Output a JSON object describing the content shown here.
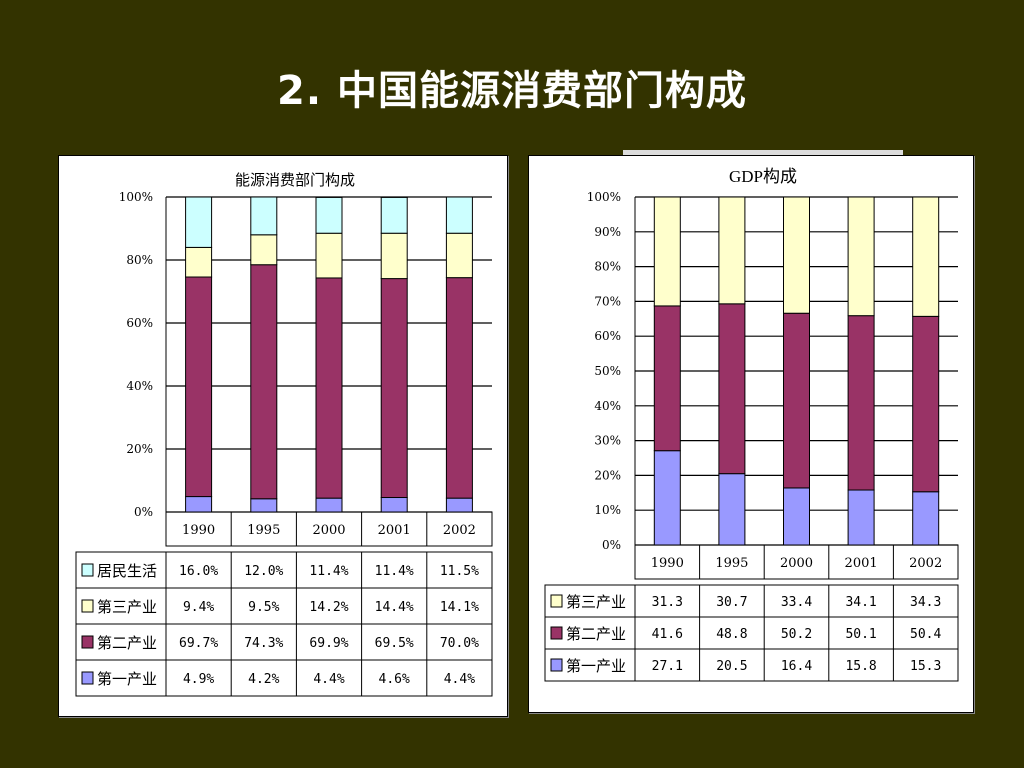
{
  "slide_title": "2. 中国能源消费部门构成",
  "chart_data": [
    {
      "type": "bar",
      "stacked": true,
      "title": "能源消费部门构成",
      "categories": [
        "1990",
        "1995",
        "2000",
        "2001",
        "2002"
      ],
      "y_ticks": [
        "0%",
        "20%",
        "40%",
        "60%",
        "80%",
        "100%"
      ],
      "ylim": [
        0,
        100
      ],
      "series": [
        {
          "name": "第一产业",
          "color": "#9999ff",
          "values": [
            4.9,
            4.2,
            4.4,
            4.6,
            4.4
          ],
          "labels": [
            "4.9%",
            "4.2%",
            "4.4%",
            "4.6%",
            "4.4%"
          ]
        },
        {
          "name": "第二产业",
          "color": "#993366",
          "values": [
            69.7,
            74.3,
            69.9,
            69.5,
            70.0
          ],
          "labels": [
            "69.7%",
            "74.3%",
            "69.9%",
            "69.5%",
            "70.0%"
          ]
        },
        {
          "name": "第三产业",
          "color": "#ffffcc",
          "values": [
            9.4,
            9.5,
            14.2,
            14.4,
            14.1
          ],
          "labels": [
            "9.4%",
            "9.5%",
            "14.2%",
            "14.4%",
            "14.1%"
          ]
        },
        {
          "name": "居民生活",
          "color": "#ccffff",
          "values": [
            16.0,
            12.0,
            11.4,
            11.4,
            11.5
          ],
          "labels": [
            "16.0%",
            "12.0%",
            "11.4%",
            "11.4%",
            "11.5%"
          ]
        }
      ],
      "grid": true,
      "legend": "data table below"
    },
    {
      "type": "bar",
      "stacked": true,
      "title": "GDP构成",
      "categories": [
        "1990",
        "1995",
        "2000",
        "2001",
        "2002"
      ],
      "y_ticks": [
        "0%",
        "10%",
        "20%",
        "30%",
        "40%",
        "50%",
        "60%",
        "70%",
        "80%",
        "90%",
        "100%"
      ],
      "ylim": [
        0,
        100
      ],
      "series": [
        {
          "name": "第一产业",
          "color": "#9999ff",
          "values": [
            27.1,
            20.5,
            16.4,
            15.8,
            15.3
          ],
          "labels": [
            "27.1",
            "20.5",
            "16.4",
            "15.8",
            "15.3"
          ]
        },
        {
          "name": "第二产业",
          "color": "#993366",
          "values": [
            41.6,
            48.8,
            50.2,
            50.1,
            50.4
          ],
          "labels": [
            "41.6",
            "48.8",
            "50.2",
            "50.1",
            "50.4"
          ]
        },
        {
          "name": "第三产业",
          "color": "#ffffcc",
          "values": [
            31.3,
            30.7,
            33.4,
            34.1,
            34.3
          ],
          "labels": [
            "31.3",
            "30.7",
            "33.4",
            "34.1",
            "34.3"
          ]
        }
      ],
      "grid": true,
      "legend": "data table below"
    }
  ]
}
